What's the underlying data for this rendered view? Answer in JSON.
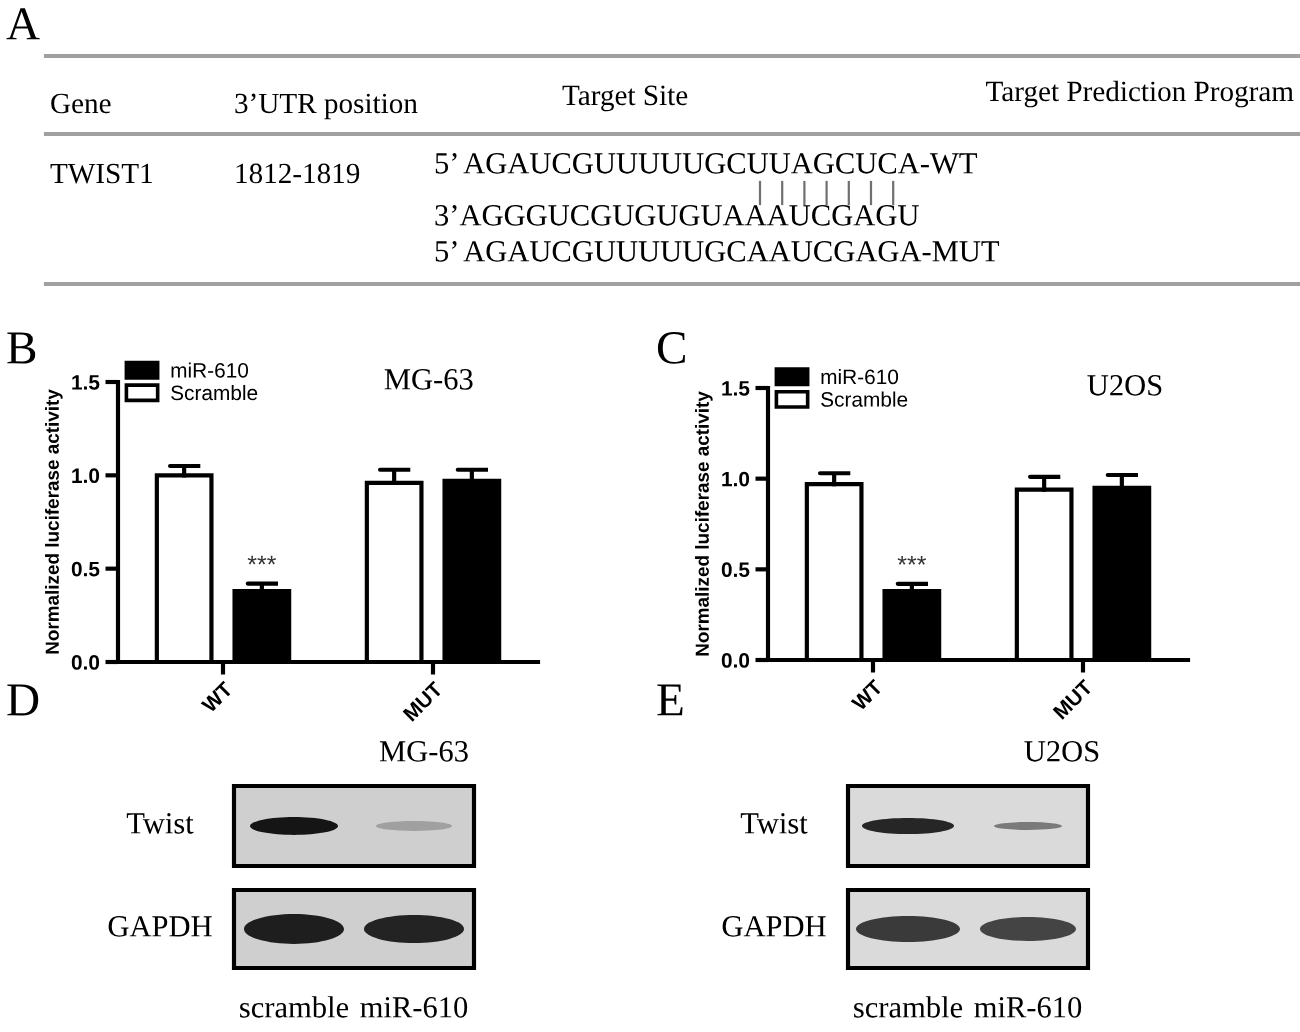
{
  "chart_data": [
    {
      "type": "other",
      "annotations": [
        "A",
        "Gene",
        "3’UTR position",
        "Target Site",
        "Target Prediction Program",
        "TWIST1",
        "1812-1819",
        "5’ AGAUCGUUUUUGCUUAGCUCA-WT",
        "3’AGGGUCGUGUGUAAAUCGAGU",
        "5’ AGAUCGUUUUUGCAAUCGAGA-MUT"
      ]
    },
    {
      "type": "bar",
      "title": "MG-63",
      "ylabel": "Normalized luciferase activity",
      "categories": [
        "WT",
        "MUT"
      ],
      "series": [
        {
          "name": "Scramble",
          "color": "#ffffff",
          "values": [
            1.0,
            0.96
          ],
          "errors": [
            [
              1.0,
              1.05
            ],
            [
              0.96,
              1.03
            ]
          ]
        },
        {
          "name": "miR-610",
          "color": "#000000",
          "values": [
            0.38,
            0.97
          ],
          "errors": [
            [
              0.38,
              0.42
            ],
            [
              0.97,
              1.03
            ]
          ]
        }
      ],
      "ylim": [
        0,
        1.5
      ],
      "yticks": [
        {
          "value": 0,
          "label": "0.0"
        },
        {
          "value": 0.5,
          "label": "0.5"
        },
        {
          "value": 1,
          "label": "1.0"
        },
        {
          "value": 1.5,
          "label": "1.5"
        }
      ],
      "legend": "top left",
      "annotations": [
        "B",
        "***"
      ]
    },
    {
      "type": "bar",
      "title": "U2OS",
      "ylabel": "Normalized luciferase activity",
      "categories": [
        "WT",
        "MUT"
      ],
      "series": [
        {
          "name": "Scramble",
          "color": "#ffffff",
          "values": [
            0.97,
            0.94
          ],
          "errors": [
            [
              0.97,
              1.03
            ],
            [
              0.94,
              1.01
            ]
          ]
        },
        {
          "name": "miR-610",
          "color": "#000000",
          "values": [
            0.38,
            0.95
          ],
          "errors": [
            [
              0.38,
              0.42
            ],
            [
              0.95,
              1.02
            ]
          ]
        }
      ],
      "ylim": [
        0,
        1.5
      ],
      "yticks": [
        {
          "value": 0,
          "label": "0.0"
        },
        {
          "value": 0.5,
          "label": "0.5"
        },
        {
          "value": 1,
          "label": "1.0"
        },
        {
          "value": 1.5,
          "label": "1.5"
        }
      ],
      "legend": "top left",
      "annotations": [
        "C",
        "***"
      ]
    },
    {
      "type": "other",
      "title": "MG-63",
      "categories": [
        "scramble",
        "miR-610"
      ],
      "annotations": [
        "D",
        "Twist",
        "GAPDH"
      ]
    },
    {
      "type": "other",
      "title": "U2OS",
      "categories": [
        "scramble",
        "miR-610"
      ],
      "annotations": [
        "E",
        "Twist",
        "GAPDH"
      ]
    }
  ]
}
